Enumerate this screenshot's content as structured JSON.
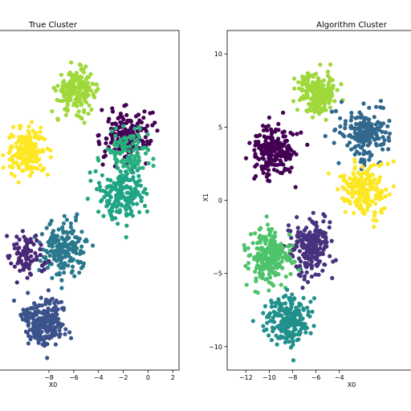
{
  "chart_data": [
    {
      "type": "scatter",
      "title": "True Cluster",
      "xlabel": "X0",
      "ylabel": "",
      "xlim": [
        -12.6,
        2.5
      ],
      "ylim": [
        -11.6,
        11.6
      ],
      "xticks": [
        -8,
        -6,
        -4,
        -2,
        0,
        2
      ],
      "yticks": [],
      "grid": false,
      "legend": "none",
      "clusters": [
        {
          "color": "#9fd83a",
          "center": [
            -5.8,
            7.5
          ],
          "spread": [
            0.75,
            0.7
          ],
          "count": 210
        },
        {
          "color": "#fde724",
          "center": [
            -9.7,
            3.3
          ],
          "spread": [
            0.85,
            0.8
          ],
          "count": 170
        },
        {
          "color": "#440154",
          "center": [
            -1.8,
            4.5
          ],
          "spread": [
            1.0,
            0.9
          ],
          "count": 160
        },
        {
          "color": "#2ab07f",
          "center": [
            -1.6,
            3.2
          ],
          "spread": [
            0.95,
            0.9
          ],
          "count": 110
        },
        {
          "color": "#20a486",
          "center": [
            -2.0,
            0.5
          ],
          "spread": [
            0.9,
            0.9
          ],
          "count": 190
        },
        {
          "color": "#2a788e",
          "center": [
            -6.7,
            -3.3
          ],
          "spread": [
            0.9,
            0.9
          ],
          "count": 190
        },
        {
          "color": "#482878",
          "center": [
            -9.8,
            -3.8
          ],
          "spread": [
            0.7,
            0.8
          ],
          "count": 90
        },
        {
          "color": "#3b528b",
          "center": [
            -8.4,
            -8.2
          ],
          "spread": [
            0.9,
            0.8
          ],
          "count": 230
        }
      ]
    },
    {
      "type": "scatter",
      "title": "Algorithm Cluster",
      "xlabel": "X0",
      "ylabel": "X1",
      "xlim": [
        -13.6,
        2.9
      ],
      "ylim": [
        -11.6,
        11.6
      ],
      "xticks": [
        -12,
        -10,
        -8,
        -6,
        -4
      ],
      "yticks": [
        10,
        5,
        0,
        -5,
        -10
      ],
      "grid": false,
      "legend": "none",
      "clusters": [
        {
          "color": "#9fd83a",
          "center": [
            -5.9,
            7.4
          ],
          "spread": [
            0.8,
            0.75
          ],
          "count": 220
        },
        {
          "color": "#440154",
          "center": [
            -9.6,
            3.3
          ],
          "spread": [
            0.85,
            0.85
          ],
          "count": 200
        },
        {
          "color": "#31688e",
          "center": [
            -1.8,
            4.5
          ],
          "spread": [
            1.0,
            0.9
          ],
          "count": 200
        },
        {
          "color": "#fde724",
          "center": [
            -2.0,
            0.7
          ],
          "spread": [
            0.95,
            0.9
          ],
          "count": 200
        },
        {
          "color": "#46327e",
          "center": [
            -6.4,
            -3.2
          ],
          "spread": [
            0.9,
            0.9
          ],
          "count": 220
        },
        {
          "color": "#4ec36b",
          "center": [
            -10.0,
            -3.8
          ],
          "spread": [
            0.9,
            0.9
          ],
          "count": 220
        },
        {
          "color": "#21908d",
          "center": [
            -8.3,
            -8.3
          ],
          "spread": [
            0.9,
            0.85
          ],
          "count": 230
        }
      ]
    }
  ]
}
